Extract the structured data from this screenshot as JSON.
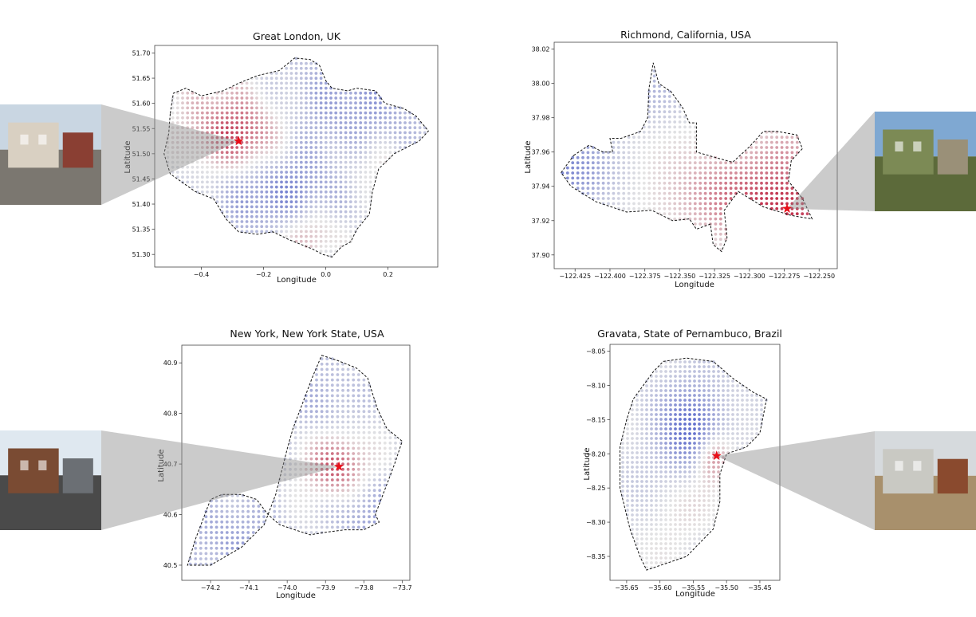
{
  "chart_data": [
    {
      "type": "scatter",
      "title": "Great London, UK",
      "xlabel": "Longitude",
      "ylabel": "Latitude",
      "xlim": [
        -0.55,
        0.36
      ],
      "ylim": [
        51.275,
        51.715
      ],
      "xticks": [
        -0.4,
        -0.2,
        0.0,
        0.2
      ],
      "xtick_labels": [
        "−0.4",
        "−0.2",
        "0.0",
        "0.2"
      ],
      "yticks": [
        51.3,
        51.35,
        51.4,
        51.45,
        51.5,
        51.55,
        51.6,
        51.65,
        51.7
      ],
      "ytick_labels": [
        "51.30",
        "51.35",
        "51.40",
        "51.45",
        "51.50",
        "51.55",
        "51.60",
        "51.65",
        "51.70"
      ],
      "grid": false,
      "marker": {
        "lon": -0.28,
        "lat": 51.525
      },
      "colormap": "coolwarm",
      "boundary": [
        [
          -0.5,
          51.58
        ],
        [
          -0.49,
          51.62
        ],
        [
          -0.45,
          51.63
        ],
        [
          -0.4,
          51.615
        ],
        [
          -0.33,
          51.625
        ],
        [
          -0.28,
          51.64
        ],
        [
          -0.22,
          51.655
        ],
        [
          -0.15,
          51.665
        ],
        [
          -0.12,
          51.68
        ],
        [
          -0.1,
          51.69
        ],
        [
          -0.05,
          51.687
        ],
        [
          -0.02,
          51.675
        ],
        [
          0.0,
          51.645
        ],
        [
          0.02,
          51.63
        ],
        [
          0.07,
          51.625
        ],
        [
          0.1,
          51.63
        ],
        [
          0.16,
          51.625
        ],
        [
          0.19,
          51.6
        ],
        [
          0.25,
          51.59
        ],
        [
          0.29,
          51.575
        ],
        [
          0.33,
          51.545
        ],
        [
          0.3,
          51.525
        ],
        [
          0.22,
          51.5
        ],
        [
          0.17,
          51.47
        ],
        [
          0.15,
          51.425
        ],
        [
          0.14,
          51.38
        ],
        [
          0.1,
          51.35
        ],
        [
          0.08,
          51.325
        ],
        [
          0.05,
          51.315
        ],
        [
          0.02,
          51.295
        ],
        [
          -0.01,
          51.3
        ],
        [
          -0.04,
          51.31
        ],
        [
          -0.08,
          51.32
        ],
        [
          -0.12,
          51.33
        ],
        [
          -0.17,
          51.345
        ],
        [
          -0.22,
          51.34
        ],
        [
          -0.28,
          51.345
        ],
        [
          -0.32,
          51.37
        ],
        [
          -0.36,
          51.41
        ],
        [
          -0.42,
          51.425
        ],
        [
          -0.5,
          51.46
        ],
        [
          -0.52,
          51.5
        ],
        [
          -0.505,
          51.54
        ],
        [
          -0.5,
          51.58
        ]
      ],
      "field": [
        {
          "lon": -0.28,
          "lat": 51.53,
          "w": 1.0,
          "s": 0.06
        },
        {
          "lon": -0.06,
          "lat": 51.34,
          "w": 0.55,
          "s": 0.05
        },
        {
          "lon": -0.15,
          "lat": 51.42,
          "w": -0.65,
          "s": 0.08
        },
        {
          "lon": 0.1,
          "lat": 51.6,
          "w": -0.45,
          "s": 0.1
        },
        {
          "lon": -0.35,
          "lat": 51.6,
          "w": 0.3,
          "s": 0.07
        },
        {
          "lon": 0.15,
          "lat": 51.48,
          "w": 0.3,
          "s": 0.05
        }
      ],
      "bias": -0.15,
      "thumbnail": {
        "label": "street-view-residential-houses",
        "x": 0,
        "y": 131,
        "w": 127,
        "h": 126,
        "sky": "#c9d6e2",
        "ground": "#7b7770",
        "main": "#d9d0c2",
        "accent": "#8a3f33"
      }
    },
    {
      "type": "scatter",
      "title": "Richmond, California, USA",
      "xlabel": "Longitude",
      "ylabel": "Latitude",
      "xlim": [
        -122.44,
        -122.237
      ],
      "ylim": [
        37.892,
        38.024
      ],
      "xticks": [
        -122.425,
        -122.4,
        -122.375,
        -122.35,
        -122.325,
        -122.3,
        -122.275,
        -122.25
      ],
      "xtick_labels": [
        "−122.425",
        "−122.400",
        "−122.375",
        "−122.350",
        "−122.325",
        "−122.300",
        "−122.275",
        "−122.250"
      ],
      "yticks": [
        37.9,
        37.92,
        37.94,
        37.96,
        37.98,
        38.0,
        38.02
      ],
      "ytick_labels": [
        "37.90",
        "37.92",
        "37.94",
        "37.96",
        "37.98",
        "38.00",
        "38.02"
      ],
      "grid": false,
      "marker": {
        "lon": -122.273,
        "lat": 37.927
      },
      "colormap": "coolwarm",
      "boundary": [
        [
          -122.426,
          37.958
        ],
        [
          -122.415,
          37.964
        ],
        [
          -122.405,
          37.96
        ],
        [
          -122.398,
          37.96
        ],
        [
          -122.4,
          37.968
        ],
        [
          -122.392,
          37.968
        ],
        [
          -122.378,
          37.972
        ],
        [
          -122.373,
          37.98
        ],
        [
          -122.372,
          37.997
        ],
        [
          -122.369,
          38.012
        ],
        [
          -122.365,
          38.0
        ],
        [
          -122.356,
          37.995
        ],
        [
          -122.348,
          37.986
        ],
        [
          -122.343,
          37.977
        ],
        [
          -122.338,
          37.977
        ],
        [
          -122.338,
          37.96
        ],
        [
          -122.325,
          37.957
        ],
        [
          -122.312,
          37.954
        ],
        [
          -122.3,
          37.963
        ],
        [
          -122.29,
          37.972
        ],
        [
          -122.28,
          37.972
        ],
        [
          -122.266,
          37.97
        ],
        [
          -122.262,
          37.962
        ],
        [
          -122.27,
          37.955
        ],
        [
          -122.272,
          37.943
        ],
        [
          -122.262,
          37.933
        ],
        [
          -122.255,
          37.921
        ],
        [
          -122.27,
          37.923
        ],
        [
          -122.29,
          37.928
        ],
        [
          -122.308,
          37.937
        ],
        [
          -122.318,
          37.926
        ],
        [
          -122.316,
          37.91
        ],
        [
          -122.32,
          37.902
        ],
        [
          -122.326,
          37.906
        ],
        [
          -122.328,
          37.918
        ],
        [
          -122.338,
          37.915
        ],
        [
          -122.343,
          37.921
        ],
        [
          -122.355,
          37.92
        ],
        [
          -122.37,
          37.926
        ],
        [
          -122.388,
          37.925
        ],
        [
          -122.41,
          37.931
        ],
        [
          -122.428,
          37.94
        ],
        [
          -122.435,
          37.948
        ],
        [
          -122.426,
          37.958
        ]
      ],
      "field": [
        {
          "lon": -122.272,
          "lat": 37.927,
          "w": 1.0,
          "s": 0.018
        },
        {
          "lon": -122.315,
          "lat": 37.935,
          "w": 0.55,
          "s": 0.018
        },
        {
          "lon": -122.375,
          "lat": 37.995,
          "w": -0.5,
          "s": 0.02
        },
        {
          "lon": -122.43,
          "lat": 37.95,
          "w": -0.7,
          "s": 0.02
        },
        {
          "lon": -122.275,
          "lat": 37.96,
          "w": 0.45,
          "s": 0.015
        }
      ],
      "bias": 0.0,
      "thumbnail": {
        "label": "hillside-grassland-view",
        "x": 1097,
        "y": 140,
        "w": 127,
        "h": 125,
        "sky": "#7fa8d2",
        "ground": "#5c6a3a",
        "main": "#7c8a55",
        "accent": "#9a9078"
      }
    },
    {
      "type": "scatter",
      "title": "New York, New York State, USA",
      "xlabel": "Longitude",
      "ylabel": "Latitude",
      "xlim": [
        -74.275,
        -73.68
      ],
      "ylim": [
        40.47,
        40.935
      ],
      "xticks": [
        -74.2,
        -74.1,
        -74.0,
        -73.9,
        -73.8,
        -73.7
      ],
      "xtick_labels": [
        "−74.2",
        "−74.1",
        "−74.0",
        "−73.9",
        "−73.8",
        "−73.7"
      ],
      "yticks": [
        40.5,
        40.6,
        40.7,
        40.8,
        40.9
      ],
      "ytick_labels": [
        "40.5",
        "40.6",
        "40.7",
        "40.8",
        "40.9"
      ],
      "grid": false,
      "marker": {
        "lon": -73.865,
        "lat": 40.695
      },
      "colormap": "coolwarm",
      "boundary": [
        [
          -73.91,
          40.915
        ],
        [
          -73.87,
          40.905
        ],
        [
          -73.82,
          40.89
        ],
        [
          -73.79,
          40.87
        ],
        [
          -73.765,
          40.81
        ],
        [
          -73.74,
          40.77
        ],
        [
          -73.7,
          40.745
        ],
        [
          -73.72,
          40.7
        ],
        [
          -73.74,
          40.66
        ],
        [
          -73.76,
          40.62
        ],
        [
          -73.77,
          40.6
        ],
        [
          -73.76,
          40.585
        ],
        [
          -73.8,
          40.57
        ],
        [
          -73.85,
          40.57
        ],
        [
          -73.9,
          40.565
        ],
        [
          -73.94,
          40.56
        ],
        [
          -73.98,
          40.57
        ],
        [
          -74.02,
          40.58
        ],
        [
          -74.05,
          40.6
        ],
        [
          -74.08,
          40.63
        ],
        [
          -74.12,
          40.64
        ],
        [
          -74.17,
          40.64
        ],
        [
          -74.2,
          40.63
        ],
        [
          -74.24,
          40.55
        ],
        [
          -74.26,
          40.5
        ],
        [
          -74.2,
          40.5
        ],
        [
          -74.12,
          40.535
        ],
        [
          -74.06,
          40.58
        ],
        [
          -74.04,
          40.62
        ],
        [
          -74.03,
          40.64
        ],
        [
          -74.02,
          40.67
        ],
        [
          -74.01,
          40.7
        ],
        [
          -74.0,
          40.73
        ],
        [
          -73.985,
          40.77
        ],
        [
          -73.96,
          40.82
        ],
        [
          -73.935,
          40.87
        ],
        [
          -73.91,
          40.915
        ]
      ],
      "field": [
        {
          "lon": -73.87,
          "lat": 40.695,
          "w": 1.0,
          "s": 0.045
        },
        {
          "lon": -73.9,
          "lat": 40.83,
          "w": -0.35,
          "s": 0.06
        },
        {
          "lon": -73.78,
          "lat": 40.6,
          "w": -0.5,
          "s": 0.06
        },
        {
          "lon": -74.15,
          "lat": 40.55,
          "w": -0.45,
          "s": 0.08
        }
      ],
      "bias": -0.1,
      "thumbnail": {
        "label": "street-view-brownstones-cars",
        "x": 0,
        "y": 540,
        "w": 127,
        "h": 125,
        "sky": "#dfe8f0",
        "ground": "#4a4a4a",
        "main": "#7a4b33",
        "accent": "#6b6f74"
      }
    },
    {
      "type": "scatter",
      "title": "Gravata, State of Pernambuco, Brazil",
      "xlabel": "Longitude",
      "ylabel": "Latitude",
      "xlim": [
        -35.675,
        -35.42
      ],
      "ylim": [
        -8.385,
        -8.04
      ],
      "xticks": [
        -35.65,
        -35.6,
        -35.55,
        -35.5,
        -35.45
      ],
      "xtick_labels": [
        "−35.65",
        "−35.60",
        "−35.55",
        "−35.50",
        "−35.45"
      ],
      "yticks": [
        -8.35,
        -8.3,
        -8.25,
        -8.2,
        -8.15,
        -8.1,
        -8.05
      ],
      "ytick_labels": [
        "−8.35",
        "−8.30",
        "−8.25",
        "−8.20",
        "−8.15",
        "−8.10",
        "−8.05"
      ],
      "grid": false,
      "marker": {
        "lon": -35.515,
        "lat": -8.203
      },
      "colormap": "coolwarm",
      "boundary": [
        [
          -35.595,
          -8.065
        ],
        [
          -35.56,
          -8.06
        ],
        [
          -35.52,
          -8.065
        ],
        [
          -35.49,
          -8.09
        ],
        [
          -35.46,
          -8.11
        ],
        [
          -35.44,
          -8.12
        ],
        [
          -35.45,
          -8.17
        ],
        [
          -35.47,
          -8.19
        ],
        [
          -35.5,
          -8.2
        ],
        [
          -35.51,
          -8.23
        ],
        [
          -35.51,
          -8.27
        ],
        [
          -35.52,
          -8.31
        ],
        [
          -35.54,
          -8.33
        ],
        [
          -35.56,
          -8.35
        ],
        [
          -35.62,
          -8.37
        ],
        [
          -35.63,
          -8.35
        ],
        [
          -35.645,
          -8.31
        ],
        [
          -35.66,
          -8.25
        ],
        [
          -35.66,
          -8.19
        ],
        [
          -35.65,
          -8.15
        ],
        [
          -35.64,
          -8.12
        ],
        [
          -35.61,
          -8.08
        ],
        [
          -35.595,
          -8.065
        ]
      ],
      "field": [
        {
          "lon": -35.52,
          "lat": -8.205,
          "w": 0.95,
          "s": 0.022
        },
        {
          "lon": -35.55,
          "lat": -8.17,
          "w": -0.95,
          "s": 0.04
        },
        {
          "lon": -35.56,
          "lat": -8.28,
          "w": 0.2,
          "s": 0.04
        }
      ],
      "bias": -0.12,
      "thumbnail": {
        "label": "dirt-path-wall-houses",
        "x": 1097,
        "y": 541,
        "w": 127,
        "h": 124,
        "sky": "#d6dadd",
        "ground": "#a8906c",
        "main": "#c9c9c3",
        "accent": "#8a4a2e"
      }
    }
  ]
}
